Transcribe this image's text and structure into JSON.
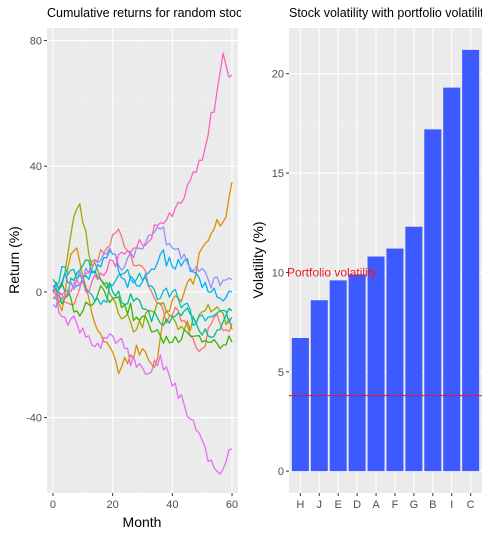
{
  "chart_data": [
    {
      "type": "line",
      "title": "Cumulative returns for random stocks",
      "xlabel": "Month",
      "ylabel": "Return (%)",
      "xlim": [
        -2,
        62
      ],
      "ylim": [
        -64,
        84
      ],
      "xticks": [
        0,
        20,
        40,
        60
      ],
      "yticks": [
        -40,
        0,
        40,
        80
      ],
      "grid": true,
      "legend": "none",
      "series": [
        {
          "color": "#F8766D",
          "anchors": [
            [
              0,
              0
            ],
            [
              6,
              -4
            ],
            [
              12,
              6
            ],
            [
              18,
              14
            ],
            [
              22,
              20
            ],
            [
              26,
              12
            ],
            [
              30,
              8
            ],
            [
              34,
              -2
            ],
            [
              38,
              -10
            ],
            [
              42,
              -6
            ],
            [
              46,
              -14
            ],
            [
              50,
              -18
            ],
            [
              54,
              -8
            ],
            [
              58,
              -12
            ],
            [
              60,
              -10
            ]
          ]
        },
        {
          "color": "#D89000",
          "anchors": [
            [
              0,
              0
            ],
            [
              3,
              -6
            ],
            [
              6,
              12
            ],
            [
              8,
              14
            ],
            [
              10,
              5
            ],
            [
              14,
              -10
            ],
            [
              18,
              -16
            ],
            [
              22,
              -26
            ],
            [
              26,
              -20
            ],
            [
              30,
              -18
            ],
            [
              34,
              -24
            ],
            [
              38,
              -6
            ],
            [
              42,
              -2
            ],
            [
              44,
              0
            ],
            [
              48,
              6
            ],
            [
              50,
              14
            ],
            [
              54,
              20
            ],
            [
              58,
              24
            ],
            [
              60,
              35
            ]
          ]
        },
        {
          "color": "#A3A500",
          "anchors": [
            [
              0,
              -2
            ],
            [
              4,
              6
            ],
            [
              7,
              24
            ],
            [
              9,
              28
            ],
            [
              12,
              12
            ],
            [
              16,
              4
            ],
            [
              20,
              -2
            ],
            [
              24,
              -8
            ],
            [
              28,
              -12
            ],
            [
              32,
              -6
            ],
            [
              36,
              -4
            ],
            [
              40,
              -8
            ],
            [
              44,
              -12
            ],
            [
              48,
              -10
            ],
            [
              52,
              -4
            ],
            [
              56,
              -6
            ],
            [
              60,
              -12
            ]
          ]
        },
        {
          "color": "#39B600",
          "anchors": [
            [
              0,
              4
            ],
            [
              4,
              0
            ],
            [
              8,
              -6
            ],
            [
              12,
              -4
            ],
            [
              16,
              2
            ],
            [
              20,
              -2
            ],
            [
              24,
              -4
            ],
            [
              28,
              -8
            ],
            [
              32,
              -10
            ],
            [
              36,
              -14
            ],
            [
              40,
              -16
            ],
            [
              44,
              -12
            ],
            [
              48,
              -14
            ],
            [
              52,
              -16
            ],
            [
              56,
              -18
            ],
            [
              60,
              -16
            ]
          ]
        },
        {
          "color": "#00BF7D",
          "anchors": [
            [
              0,
              0
            ],
            [
              4,
              -2
            ],
            [
              8,
              6
            ],
            [
              12,
              10
            ],
            [
              16,
              4
            ],
            [
              20,
              0
            ],
            [
              24,
              -4
            ],
            [
              28,
              -2
            ],
            [
              32,
              -6
            ],
            [
              36,
              -10
            ],
            [
              40,
              -8
            ],
            [
              44,
              -6
            ],
            [
              48,
              -10
            ],
            [
              52,
              -14
            ],
            [
              56,
              -12
            ],
            [
              60,
              -6
            ]
          ]
        },
        {
          "color": "#00BFC4",
          "anchors": [
            [
              0,
              2
            ],
            [
              4,
              8
            ],
            [
              8,
              4
            ],
            [
              12,
              0
            ],
            [
              16,
              -4
            ],
            [
              20,
              2
            ],
            [
              24,
              6
            ],
            [
              28,
              4
            ],
            [
              32,
              2
            ],
            [
              36,
              -2
            ],
            [
              40,
              0
            ],
            [
              44,
              -4
            ],
            [
              48,
              -10
            ],
            [
              52,
              -8
            ],
            [
              56,
              -6
            ],
            [
              60,
              -8
            ]
          ]
        },
        {
          "color": "#00B0F6",
          "anchors": [
            [
              0,
              0
            ],
            [
              4,
              6
            ],
            [
              8,
              2
            ],
            [
              12,
              4
            ],
            [
              16,
              8
            ],
            [
              20,
              12
            ],
            [
              24,
              4
            ],
            [
              28,
              2
            ],
            [
              32,
              6
            ],
            [
              36,
              12
            ],
            [
              40,
              8
            ],
            [
              44,
              10
            ],
            [
              48,
              6
            ],
            [
              52,
              0
            ],
            [
              56,
              -2
            ],
            [
              60,
              0
            ]
          ]
        },
        {
          "color": "#9590FF",
          "anchors": [
            [
              0,
              -4
            ],
            [
              4,
              0
            ],
            [
              8,
              4
            ],
            [
              12,
              6
            ],
            [
              16,
              10
            ],
            [
              20,
              12
            ],
            [
              24,
              8
            ],
            [
              28,
              14
            ],
            [
              32,
              18
            ],
            [
              36,
              20
            ],
            [
              40,
              14
            ],
            [
              44,
              12
            ],
            [
              48,
              8
            ],
            [
              52,
              4
            ],
            [
              56,
              2
            ],
            [
              60,
              4
            ]
          ]
        },
        {
          "color": "#E76BF3",
          "anchors": [
            [
              0,
              -2
            ],
            [
              4,
              -8
            ],
            [
              8,
              -10
            ],
            [
              12,
              -14
            ],
            [
              16,
              -18
            ],
            [
              20,
              -14
            ],
            [
              24,
              -18
            ],
            [
              28,
              -24
            ],
            [
              32,
              -26
            ],
            [
              36,
              -20
            ],
            [
              40,
              -30
            ],
            [
              44,
              -36
            ],
            [
              48,
              -44
            ],
            [
              52,
              -54
            ],
            [
              56,
              -58
            ],
            [
              58,
              -54
            ],
            [
              60,
              -50
            ]
          ]
        },
        {
          "color": "#FF62BC",
          "anchors": [
            [
              0,
              2
            ],
            [
              4,
              -2
            ],
            [
              8,
              4
            ],
            [
              12,
              0
            ],
            [
              16,
              6
            ],
            [
              20,
              10
            ],
            [
              24,
              12
            ],
            [
              28,
              14
            ],
            [
              32,
              16
            ],
            [
              36,
              22
            ],
            [
              40,
              24
            ],
            [
              44,
              30
            ],
            [
              48,
              38
            ],
            [
              52,
              50
            ],
            [
              55,
              64
            ],
            [
              57,
              76
            ],
            [
              58,
              72
            ],
            [
              60,
              69
            ]
          ]
        }
      ]
    },
    {
      "type": "bar",
      "title": "Stock volatility with portfolio volatility",
      "xlabel": "",
      "ylabel": "Volatility (%)",
      "categories": [
        "H",
        "J",
        "E",
        "D",
        "A",
        "F",
        "G",
        "B",
        "I",
        "C"
      ],
      "values": [
        6.7,
        8.6,
        9.6,
        9.9,
        10.8,
        11.2,
        12.3,
        17.2,
        19.3,
        21.2
      ],
      "ylim": [
        -1.1,
        22.3
      ],
      "yticks": [
        0,
        5,
        10,
        15,
        20
      ],
      "bar_color": "#3D5AFE",
      "grid": true,
      "legend": "none",
      "annotations": [
        {
          "text": "Portfolio volatility",
          "x_category": "H",
          "y": 10.0,
          "color": "#E41A1C"
        }
      ],
      "hline": {
        "y": 3.8,
        "color": "#E41A1C"
      }
    }
  ]
}
